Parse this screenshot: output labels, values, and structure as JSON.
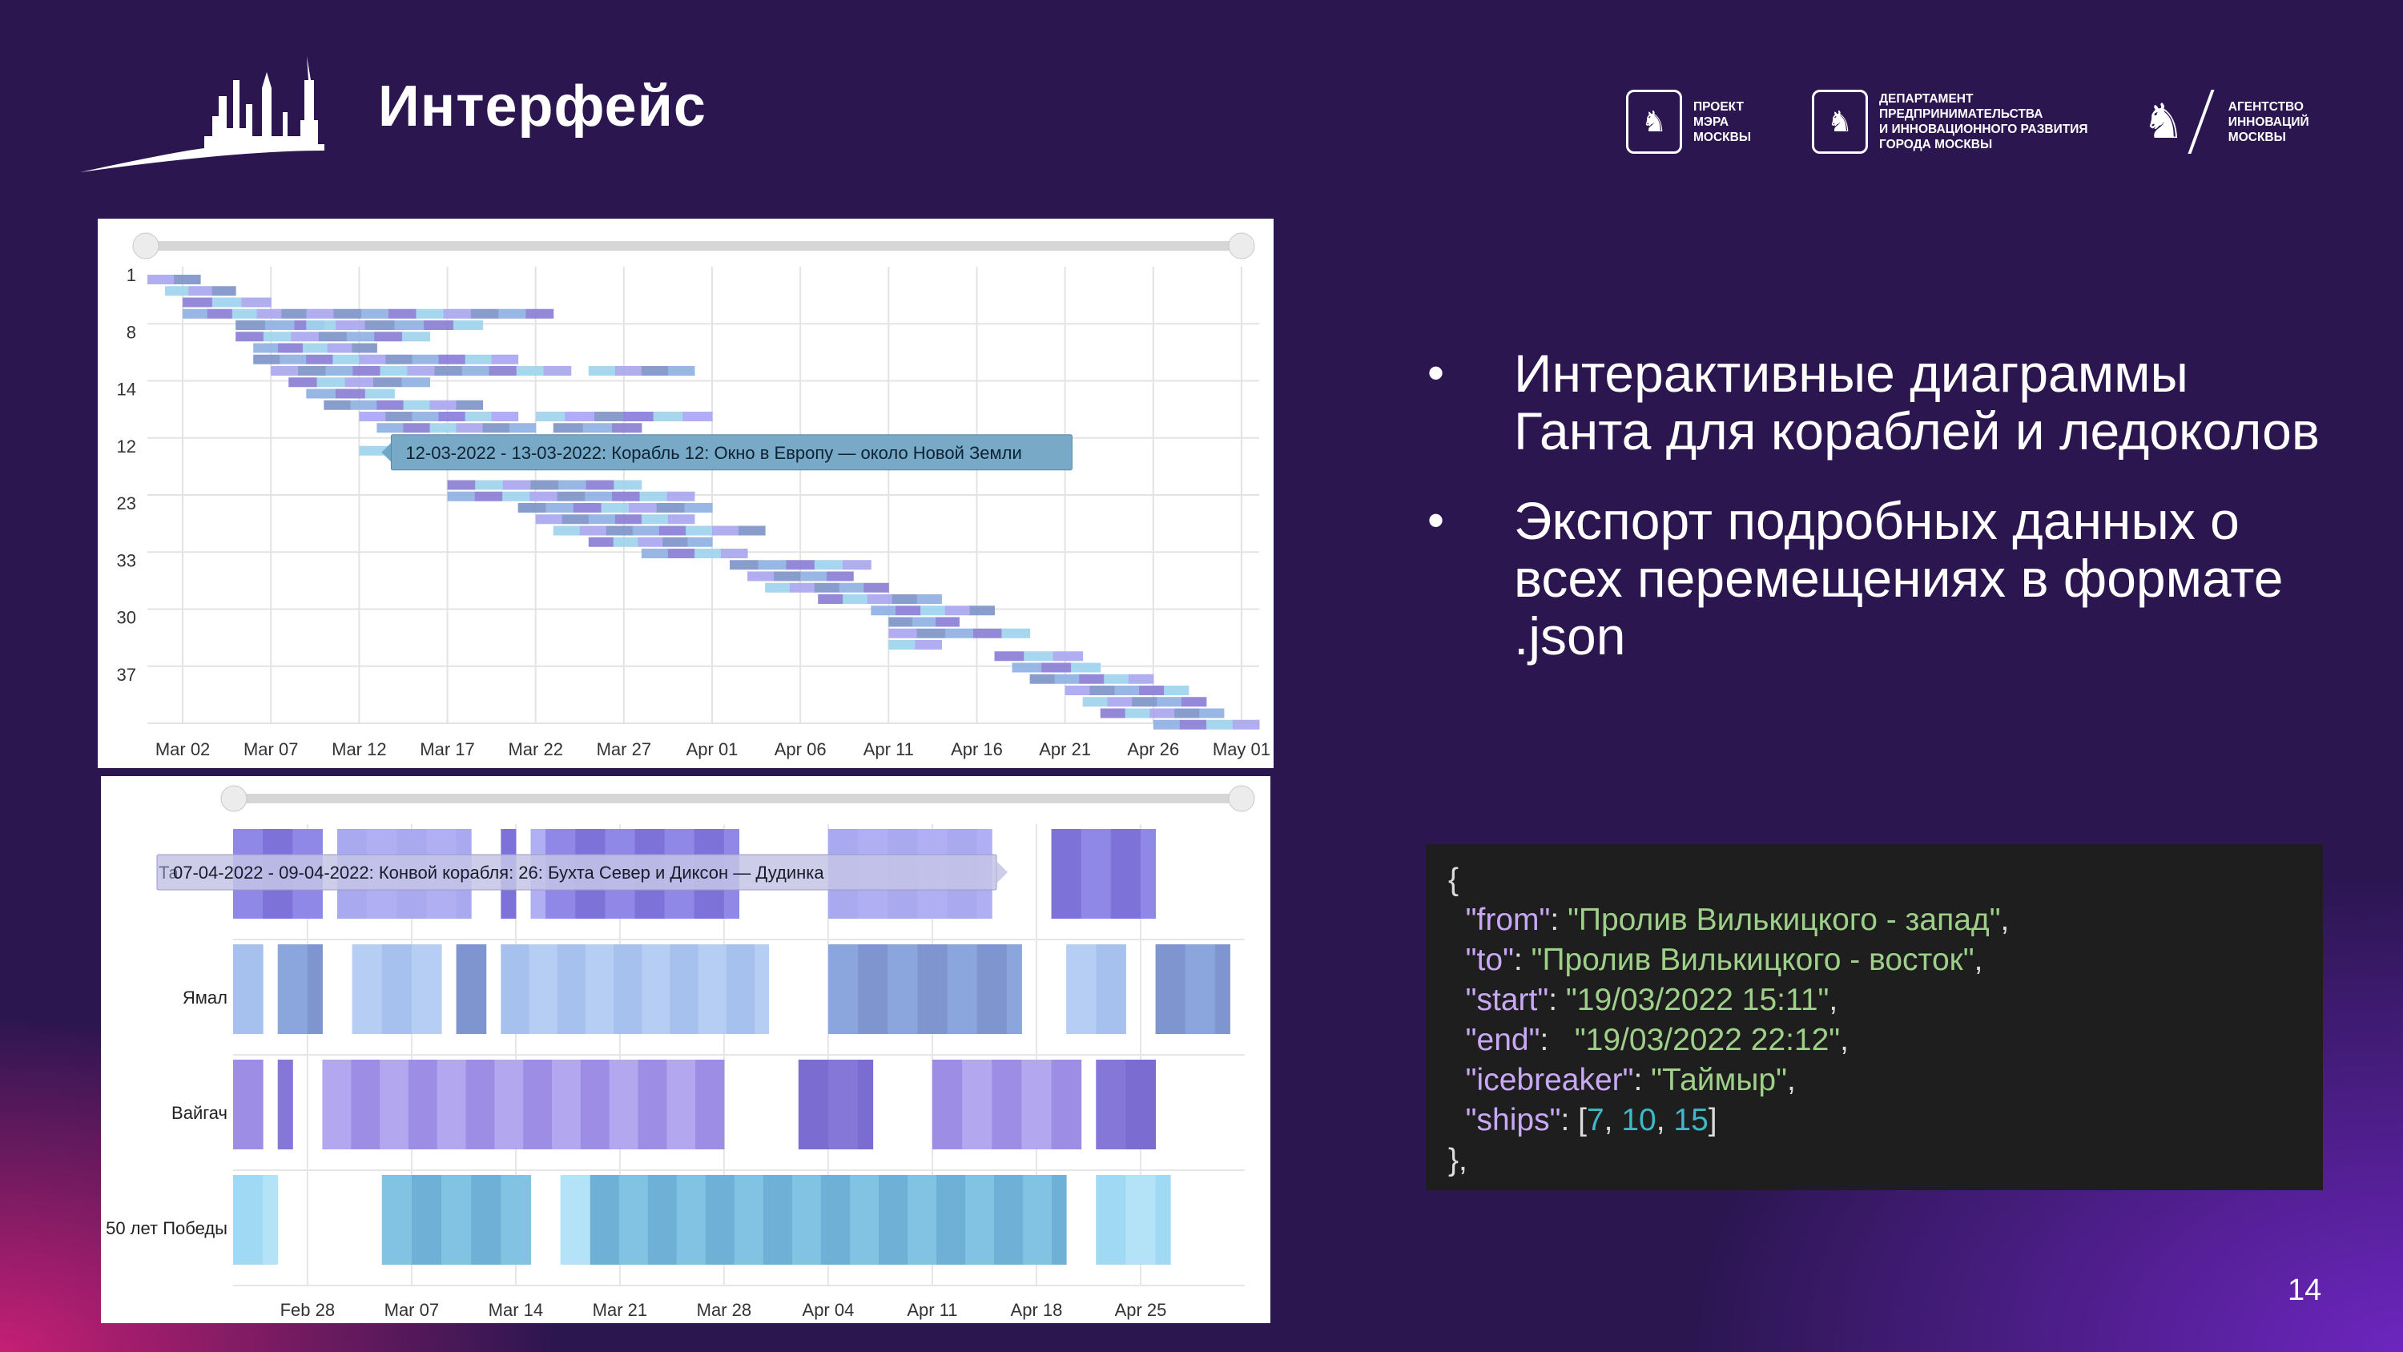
{
  "header": {
    "title": "Интерфейс"
  },
  "logos": [
    {
      "text": "ПРОЕКТ\nМЭРА\nМОСКВЫ"
    },
    {
      "text": "ДЕПАРТАМЕНТ\nПРЕДПРИНИМАТЕЛЬСТВА\nИ ИННОВАЦИОННОГО РАЗВИТИЯ\nГОРОДА МОСКВЫ"
    },
    {
      "text": "АГЕНТСТВО\nИННОВАЦИЙ\nМОСКВЫ"
    }
  ],
  "bullets": [
    "Интерактивные диаграммы Ганта для кораблей и ледоколов",
    "Экспорт подробных данных о всех перемещениях в формате .json"
  ],
  "code": {
    "open": "{",
    "from_key": "from",
    "from_val": "Пролив Вилькицкого - запад",
    "to_key": "to",
    "to_val": "Пролив Вилькицкого - восток",
    "start_key": "start",
    "start_val": "19/03/2022 15:11",
    "end_key": "end",
    "end_val": "19/03/2022 22:12",
    "icebreaker_key": "icebreaker",
    "icebreaker_val": "Таймыр",
    "ships_key": "ships",
    "ships_vals": [
      "7",
      "10",
      "15"
    ],
    "close": "},"
  },
  "page_number": "14",
  "chart_data": [
    {
      "type": "gantt",
      "y_labels": [
        "1",
        "8",
        "14",
        "12",
        "23",
        "33",
        "30",
        "37"
      ],
      "x_ticks": [
        "Mar 02",
        "Mar 07",
        "Mar 12",
        "Mar 17",
        "Mar 22",
        "Mar 27",
        "Apr 01",
        "Apr 06",
        "Apr 11",
        "Apr 16",
        "Apr 21",
        "Apr 26",
        "May 01"
      ],
      "x_range": [
        "2022-02-28",
        "2022-05-02"
      ],
      "tooltip": "12-03-2022 - 13-03-2022: Корабль 12: Окно в Европу — около Новой Земли",
      "colors": [
        "#a9a6ef",
        "#8b7fd6",
        "#7f95c9",
        "#9fd3ee",
        "#8fb1e3"
      ],
      "bars": [
        {
          "row": 0.0,
          "start": "2022-02-28",
          "end": "2022-03-02"
        },
        {
          "row": 0.2,
          "start": "2022-03-01",
          "end": "2022-03-04"
        },
        {
          "row": 0.4,
          "start": "2022-03-02",
          "end": "2022-03-06"
        },
        {
          "row": 0.6,
          "start": "2022-03-02",
          "end": "2022-03-08"
        },
        {
          "row": 0.8,
          "start": "2022-03-05",
          "end": "2022-03-09"
        },
        {
          "row": 0.6,
          "start": "2022-03-09",
          "end": "2022-03-22"
        },
        {
          "row": 0.8,
          "start": "2022-03-09",
          "end": "2022-03-18"
        },
        {
          "row": 1.0,
          "start": "2022-03-05",
          "end": "2022-03-15"
        },
        {
          "row": 1.2,
          "start": "2022-03-06",
          "end": "2022-03-12"
        },
        {
          "row": 1.4,
          "start": "2022-03-06",
          "end": "2022-03-20"
        },
        {
          "row": 1.6,
          "start": "2022-03-07",
          "end": "2022-03-23"
        },
        {
          "row": 1.6,
          "start": "2022-03-25",
          "end": "2022-03-30"
        },
        {
          "row": 1.8,
          "start": "2022-03-08",
          "end": "2022-03-15"
        },
        {
          "row": 2.0,
          "start": "2022-03-09",
          "end": "2022-03-13"
        },
        {
          "row": 2.2,
          "start": "2022-03-10",
          "end": "2022-03-18"
        },
        {
          "row": 2.4,
          "start": "2022-03-12",
          "end": "2022-03-20"
        },
        {
          "row": 2.4,
          "start": "2022-03-22",
          "end": "2022-03-26"
        },
        {
          "row": 2.4,
          "start": "2022-03-27",
          "end": "2022-03-31"
        },
        {
          "row": 2.6,
          "start": "2022-03-13",
          "end": "2022-03-21"
        },
        {
          "row": 2.6,
          "start": "2022-03-23",
          "end": "2022-03-27"
        },
        {
          "row": 2.8,
          "start": "2022-03-14",
          "end": "2022-03-18"
        },
        {
          "row": 3.0,
          "start": "2022-03-12",
          "end": "2022-03-13"
        },
        {
          "row": 3.6,
          "start": "2022-03-17",
          "end": "2022-03-27"
        },
        {
          "row": 3.8,
          "start": "2022-03-17",
          "end": "2022-03-30"
        },
        {
          "row": 4.0,
          "start": "2022-03-21",
          "end": "2022-03-31"
        },
        {
          "row": 4.2,
          "start": "2022-03-22",
          "end": "2022-03-30"
        },
        {
          "row": 4.4,
          "start": "2022-03-23",
          "end": "2022-04-03"
        },
        {
          "row": 4.6,
          "start": "2022-03-25",
          "end": "2022-03-31"
        },
        {
          "row": 4.8,
          "start": "2022-03-28",
          "end": "2022-04-02"
        },
        {
          "row": 5.0,
          "start": "2022-04-02",
          "end": "2022-04-09"
        },
        {
          "row": 5.2,
          "start": "2022-04-03",
          "end": "2022-04-08"
        },
        {
          "row": 5.4,
          "start": "2022-04-04",
          "end": "2022-04-10"
        },
        {
          "row": 5.6,
          "start": "2022-04-07",
          "end": "2022-04-13"
        },
        {
          "row": 5.8,
          "start": "2022-04-10",
          "end": "2022-04-16"
        },
        {
          "row": 6.0,
          "start": "2022-04-11",
          "end": "2022-04-14"
        },
        {
          "row": 6.2,
          "start": "2022-04-11",
          "end": "2022-04-18"
        },
        {
          "row": 6.4,
          "start": "2022-04-11",
          "end": "2022-04-13"
        },
        {
          "row": 6.6,
          "start": "2022-04-17",
          "end": "2022-04-21"
        },
        {
          "row": 6.8,
          "start": "2022-04-18",
          "end": "2022-04-22"
        },
        {
          "row": 7.0,
          "start": "2022-04-19",
          "end": "2022-04-25"
        },
        {
          "row": 7.2,
          "start": "2022-04-21",
          "end": "2022-04-27"
        },
        {
          "row": 7.4,
          "start": "2022-04-22",
          "end": "2022-04-28"
        },
        {
          "row": 7.6,
          "start": "2022-04-23",
          "end": "2022-04-29"
        },
        {
          "row": 7.8,
          "start": "2022-04-26",
          "end": "2022-05-01"
        }
      ]
    },
    {
      "type": "gantt",
      "y_labels": [
        "",
        "Ямал",
        "Вайгач",
        "50 лет Победы"
      ],
      "x_ticks": [
        "Feb 28",
        "Mar 07",
        "Mar 14",
        "Mar 21",
        "Mar 28",
        "Apr 04",
        "Apr 11",
        "Apr 18",
        "Apr 25"
      ],
      "x_range": [
        "2022-02-23",
        "2022-05-02"
      ],
      "tooltip": "07-04-2022 - 09-04-2022: Конвой корабля: 26: Бухта Север и Диксон — Дудинка",
      "tooltip_hidden_label": "Та",
      "colors": [
        "#8f88e6",
        "#a8a9ee",
        "#7f8fd0",
        "#a7c1ee",
        "#8ed1ee",
        "#a2dcf5"
      ],
      "rows": [
        {
          "color_set": 0,
          "segments": [
            [
              "2022-02-23",
              "2022-03-01"
            ],
            [
              "2022-03-02",
              "2022-03-11"
            ],
            [
              "2022-03-13",
              "2022-03-14"
            ],
            [
              "2022-03-15",
              "2022-03-16"
            ],
            [
              "2022-03-16",
              "2022-03-29"
            ],
            [
              "2022-04-04",
              "2022-04-15"
            ],
            [
              "2022-04-19",
              "2022-04-26"
            ]
          ]
        },
        {
          "color_set": 1,
          "segments": [
            [
              "2022-02-23",
              "2022-02-25"
            ],
            [
              "2022-02-26",
              "2022-02-29"
            ],
            [
              "2022-03-03",
              "2022-03-09"
            ],
            [
              "2022-03-10",
              "2022-03-12"
            ],
            [
              "2022-03-13",
              "2022-03-31"
            ],
            [
              "2022-04-04",
              "2022-04-17"
            ],
            [
              "2022-04-20",
              "2022-04-24"
            ],
            [
              "2022-04-26",
              "2022-05-01"
            ]
          ]
        },
        {
          "color_set": 2,
          "segments": [
            [
              "2022-02-23",
              "2022-02-25"
            ],
            [
              "2022-02-26",
              "2022-02-27"
            ],
            [
              "2022-03-01",
              "2022-03-28"
            ],
            [
              "2022-04-02",
              "2022-04-07"
            ],
            [
              "2022-04-11",
              "2022-04-21"
            ],
            [
              "2022-04-22",
              "2022-04-26"
            ]
          ]
        },
        {
          "color_set": 3,
          "segments": [
            [
              "2022-02-23",
              "2022-02-26"
            ],
            [
              "2022-03-05",
              "2022-03-15"
            ],
            [
              "2022-03-17",
              "2022-03-19"
            ],
            [
              "2022-03-19",
              "2022-04-20"
            ],
            [
              "2022-04-22",
              "2022-04-27"
            ]
          ]
        }
      ]
    }
  ]
}
